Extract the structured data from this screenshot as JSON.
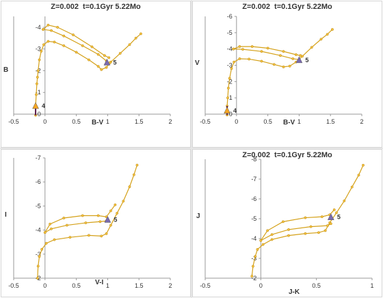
{
  "chart_data": [
    {
      "type": "line",
      "title": "Z=0.002  t=0.1Gyr 5.22Mo",
      "xlabel": "B-V",
      "ylabel": "B",
      "xlim": [
        -0.5,
        2
      ],
      "ylim": [
        0,
        -4.5
      ],
      "xticks": [
        "-0.5",
        "0",
        "0.5",
        "1",
        "1.5",
        "2"
      ],
      "yticks": [
        "-4",
        "-3",
        "-2",
        "-1",
        "0"
      ],
      "series": [
        {
          "values": [
            [
              -0.15,
              0.05
            ],
            [
              -0.15,
              -0.4
            ],
            [
              -0.14,
              -0.9
            ],
            [
              -0.13,
              -1.4
            ],
            [
              -0.12,
              -1.7
            ],
            [
              -0.11,
              -2.0
            ],
            [
              -0.09,
              -2.5
            ],
            [
              -0.06,
              -2.9
            ],
            [
              -0.02,
              -3.2
            ],
            [
              0.05,
              -3.35
            ],
            [
              0.15,
              -3.32
            ],
            [
              0.3,
              -3.15
            ],
            [
              0.5,
              -2.85
            ],
            [
              0.7,
              -2.5
            ],
            [
              0.85,
              -2.2
            ],
            [
              0.9,
              -2.05
            ],
            [
              0.98,
              -2.15
            ],
            [
              1.05,
              -2.4
            ],
            [
              1.2,
              -2.8
            ],
            [
              1.35,
              -3.2
            ],
            [
              1.45,
              -3.5
            ],
            [
              1.53,
              -3.7
            ]
          ]
        },
        {
          "values": [
            [
              -0.03,
              -3.9
            ],
            [
              0.1,
              -3.85
            ],
            [
              0.3,
              -3.6
            ],
            [
              0.6,
              -3.15
            ],
            [
              0.85,
              -2.75
            ],
            [
              0.98,
              -2.45
            ],
            [
              1.03,
              -2.35
            ]
          ]
        },
        {
          "values": [
            [
              -0.03,
              -3.9
            ],
            [
              0.05,
              -4.1
            ],
            [
              0.2,
              -4.0
            ],
            [
              0.45,
              -3.65
            ],
            [
              0.75,
              -3.1
            ],
            [
              0.95,
              -2.7
            ],
            [
              1.02,
              -2.6
            ]
          ]
        }
      ],
      "markers": [
        {
          "label": "4",
          "x": -0.15,
          "y": -0.38,
          "color": "#f5a623"
        },
        {
          "label": "5",
          "x": 0.99,
          "y": -2.38,
          "color": "#7a6bb0"
        }
      ],
      "colors": {
        "line": "#d4a017",
        "point": "#f5c242",
        "track": "#5a1a4a"
      }
    },
    {
      "type": "line",
      "title": "Z=0.002  t=0.1Gyr 5.22Mo",
      "xlabel": "B-V",
      "ylabel": "V",
      "xlim": [
        -0.5,
        2
      ],
      "ylim": [
        0,
        -6
      ],
      "xticks": [
        "-0.5",
        "0",
        "0.5",
        "1",
        "1.5",
        "2"
      ],
      "yticks": [
        "-6",
        "-5",
        "-4",
        "-3",
        "-2",
        "-1",
        "0"
      ],
      "series": [
        {
          "values": [
            [
              -0.15,
              0.05
            ],
            [
              -0.15,
              -0.5
            ],
            [
              -0.14,
              -1.0
            ],
            [
              -0.13,
              -1.6
            ],
            [
              -0.11,
              -2.2
            ],
            [
              -0.08,
              -2.8
            ],
            [
              -0.04,
              -3.2
            ],
            [
              0.05,
              -3.4
            ],
            [
              0.2,
              -3.38
            ],
            [
              0.4,
              -3.25
            ],
            [
              0.6,
              -3.05
            ],
            [
              0.75,
              -2.9
            ],
            [
              0.85,
              -2.95
            ],
            [
              0.95,
              -3.2
            ],
            [
              1.05,
              -3.55
            ],
            [
              1.2,
              -4.1
            ],
            [
              1.35,
              -4.6
            ],
            [
              1.45,
              -4.9
            ],
            [
              1.53,
              -5.2
            ]
          ]
        },
        {
          "values": [
            [
              -0.05,
              -4.0
            ],
            [
              0.1,
              -3.98
            ],
            [
              0.4,
              -3.85
            ],
            [
              0.7,
              -3.6
            ],
            [
              0.9,
              -3.4
            ],
            [
              1.0,
              -3.35
            ]
          ]
        },
        {
          "values": [
            [
              -0.05,
              -4.0
            ],
            [
              0.05,
              -4.15
            ],
            [
              0.25,
              -4.15
            ],
            [
              0.5,
              -4.05
            ],
            [
              0.75,
              -3.85
            ],
            [
              0.95,
              -3.65
            ],
            [
              1.02,
              -3.6
            ]
          ]
        }
      ],
      "markers": [
        {
          "label": "4",
          "x": -0.15,
          "y": -0.22,
          "color": "#f5a623"
        },
        {
          "label": "5",
          "x": 1.0,
          "y": -3.32,
          "color": "#7a6bb0"
        }
      ],
      "colors": {
        "line": "#d4a017",
        "point": "#f5c242",
        "track": "#5a1a4a"
      }
    },
    {
      "type": "line",
      "title": "",
      "xlabel": "V-I",
      "ylabel": "I",
      "xlim": [
        -0.5,
        2
      ],
      "ylim": [
        -2,
        -7
      ],
      "xticks": [
        "-0.5",
        "0",
        "0.5",
        "1",
        "1.5",
        "2"
      ],
      "yticks": [
        "-7",
        "-6",
        "-5",
        "-4",
        "-3",
        "-2"
      ],
      "series": [
        {
          "values": [
            [
              -0.12,
              -2.0
            ],
            [
              -0.11,
              -2.5
            ],
            [
              -0.09,
              -2.9
            ],
            [
              -0.05,
              -3.2
            ],
            [
              0.02,
              -3.45
            ],
            [
              0.15,
              -3.6
            ],
            [
              0.4,
              -3.7
            ],
            [
              0.7,
              -3.78
            ],
            [
              0.9,
              -3.75
            ],
            [
              0.98,
              -3.85
            ],
            [
              1.05,
              -4.2
            ],
            [
              1.15,
              -4.7
            ],
            [
              1.25,
              -5.2
            ],
            [
              1.35,
              -5.8
            ],
            [
              1.42,
              -6.3
            ],
            [
              1.47,
              -6.7
            ]
          ]
        },
        {
          "values": [
            [
              0.0,
              -3.9
            ],
            [
              0.1,
              -4.05
            ],
            [
              0.35,
              -4.2
            ],
            [
              0.65,
              -4.3
            ],
            [
              0.88,
              -4.35
            ],
            [
              0.98,
              -4.38
            ]
          ]
        },
        {
          "values": [
            [
              0.0,
              -3.9
            ],
            [
              0.08,
              -4.25
            ],
            [
              0.3,
              -4.5
            ],
            [
              0.6,
              -4.6
            ],
            [
              0.85,
              -4.6
            ],
            [
              0.98,
              -4.55
            ],
            [
              1.05,
              -4.8
            ],
            [
              1.12,
              -5.05
            ]
          ]
        }
      ],
      "markers": [
        {
          "label": "5",
          "x": 1.0,
          "y": -4.43,
          "color": "#7a6bb0"
        }
      ],
      "colors": {
        "line": "#d4a017",
        "point": "#f5c242",
        "track": "#5a1a4a"
      }
    },
    {
      "type": "line",
      "title": "Z=0.002  t=0.1Gyr 5.22Mo",
      "xlabel": "J-K",
      "ylabel": "J",
      "xlim": [
        -0.5,
        1
      ],
      "ylim": [
        -2,
        -8
      ],
      "xticks": [
        "-0.5",
        "0",
        "0.5",
        "1"
      ],
      "yticks": [
        "-8",
        "-7",
        "-6",
        "-5",
        "-4",
        "-3",
        "-2"
      ],
      "series": [
        {
          "values": [
            [
              -0.08,
              -2.1
            ],
            [
              -0.07,
              -2.6
            ],
            [
              -0.05,
              -3.1
            ],
            [
              -0.03,
              -3.45
            ],
            [
              0.02,
              -3.7
            ],
            [
              0.1,
              -3.95
            ],
            [
              0.25,
              -4.15
            ],
            [
              0.4,
              -4.25
            ],
            [
              0.52,
              -4.3
            ],
            [
              0.58,
              -4.4
            ],
            [
              0.62,
              -4.8
            ],
            [
              0.68,
              -5.3
            ],
            [
              0.75,
              -5.9
            ],
            [
              0.82,
              -6.6
            ],
            [
              0.88,
              -7.2
            ],
            [
              0.92,
              -7.7
            ]
          ]
        },
        {
          "values": [
            [
              0.0,
              -3.9
            ],
            [
              0.1,
              -4.2
            ],
            [
              0.25,
              -4.45
            ],
            [
              0.45,
              -4.6
            ],
            [
              0.6,
              -4.65
            ],
            [
              0.63,
              -4.75
            ]
          ]
        },
        {
          "values": [
            [
              0.0,
              -3.9
            ],
            [
              0.06,
              -4.4
            ],
            [
              0.2,
              -4.85
            ],
            [
              0.4,
              -5.05
            ],
            [
              0.55,
              -5.1
            ],
            [
              0.62,
              -5.2
            ],
            [
              0.66,
              -5.45
            ]
          ]
        }
      ],
      "markers": [
        {
          "label": "5",
          "x": 0.63,
          "y": -5.08,
          "color": "#7a6bb0"
        }
      ],
      "colors": {
        "line": "#d4a017",
        "point": "#f5c242",
        "track": "#5a1a4a"
      }
    }
  ]
}
